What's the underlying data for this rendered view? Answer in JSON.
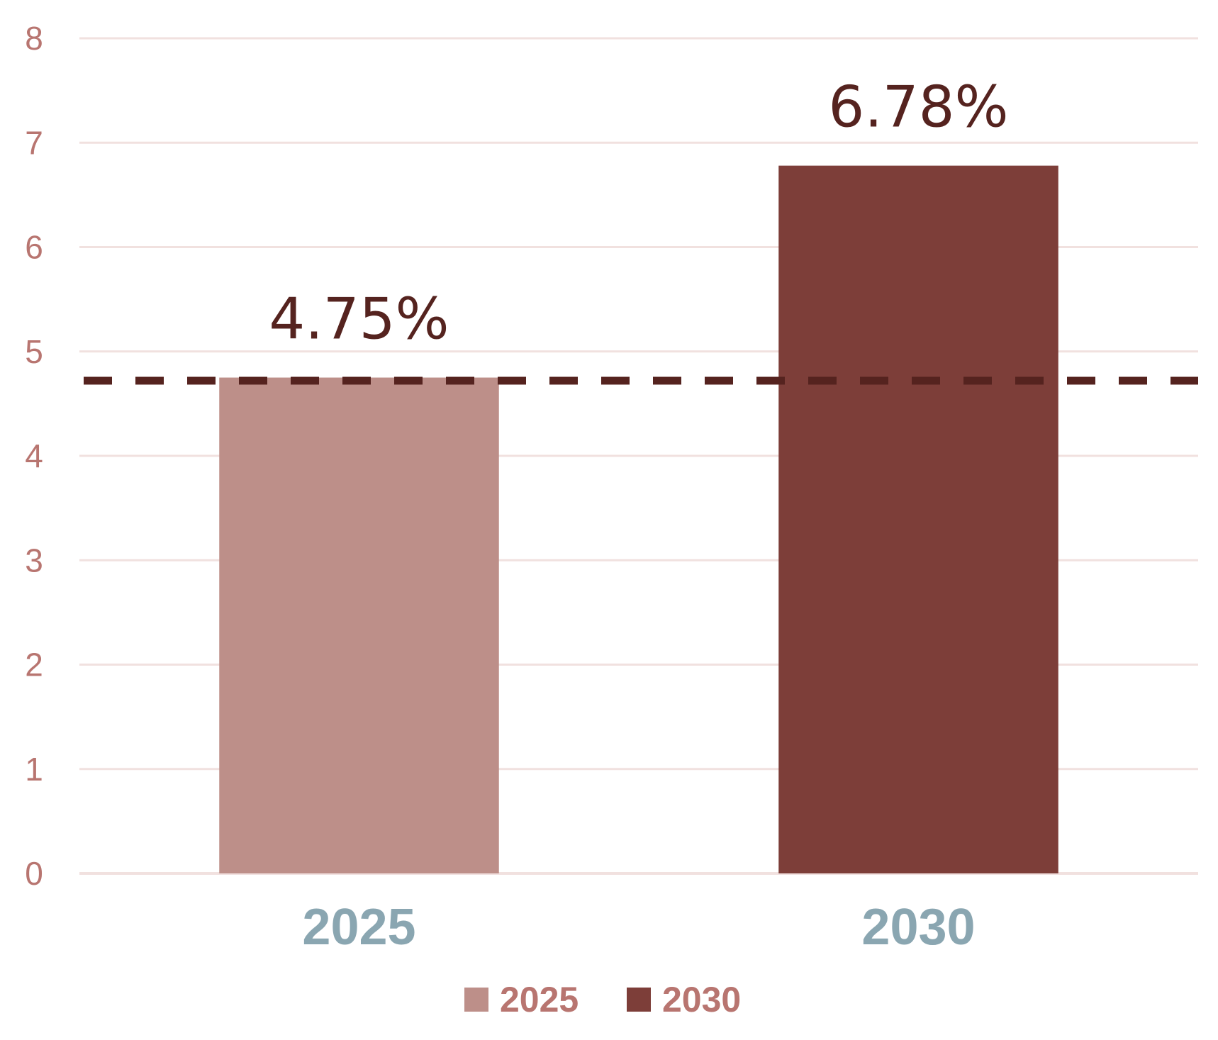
{
  "chart_data": {
    "type": "bar",
    "categories": [
      "2025",
      "2030"
    ],
    "values": [
      4.75,
      6.78
    ],
    "data_labels": [
      "4.75%",
      "6.78%"
    ],
    "colors": [
      "#bd8f89",
      "#7d3e39"
    ],
    "ylim": [
      0,
      8
    ],
    "yticks": [
      0,
      1,
      2,
      3,
      4,
      5,
      6,
      7,
      8
    ],
    "grid": true,
    "reference_line": {
      "value": 4.72,
      "style": "dashed",
      "color": "#55231f"
    },
    "legend": {
      "placement": "bottom",
      "entries": [
        {
          "label": "2025",
          "color": "#bd8f89"
        },
        {
          "label": "2030",
          "color": "#7d3e39"
        }
      ]
    },
    "colors_text": {
      "ytick": "#b87570",
      "xtick": "#8aa6b1",
      "data_label": "#55231f",
      "legend": "#b87570",
      "grid": "#f1e1df"
    }
  }
}
